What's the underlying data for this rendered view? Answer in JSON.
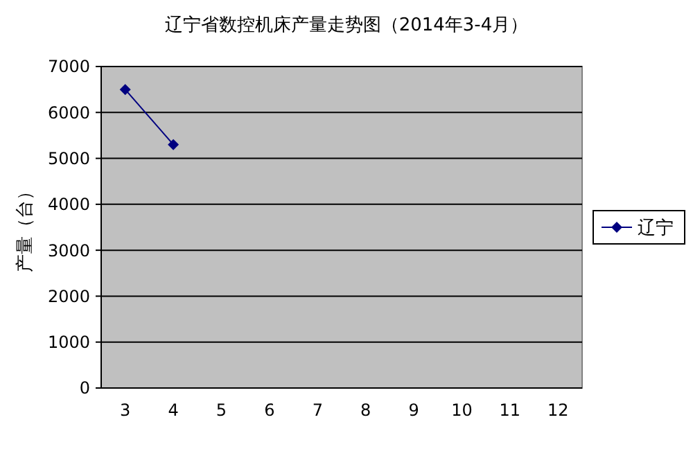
{
  "chart_data": {
    "type": "line",
    "title": "辽宁省数控机床产量走势图（2014年3-4月）",
    "ylabel": "产量（台）",
    "categories": [
      "3",
      "4",
      "5",
      "6",
      "7",
      "8",
      "9",
      "10",
      "11",
      "12"
    ],
    "series": [
      {
        "name": "辽宁",
        "color": "#000080",
        "values": [
          6500,
          5300,
          null,
          null,
          null,
          null,
          null,
          null,
          null,
          null
        ]
      }
    ],
    "ylim": [
      0,
      7000
    ],
    "yticks": [
      0,
      1000,
      2000,
      3000,
      4000,
      5000,
      6000,
      7000
    ],
    "grid": "y",
    "legend": "right",
    "marker": "diamond",
    "line_style": "solid"
  }
}
